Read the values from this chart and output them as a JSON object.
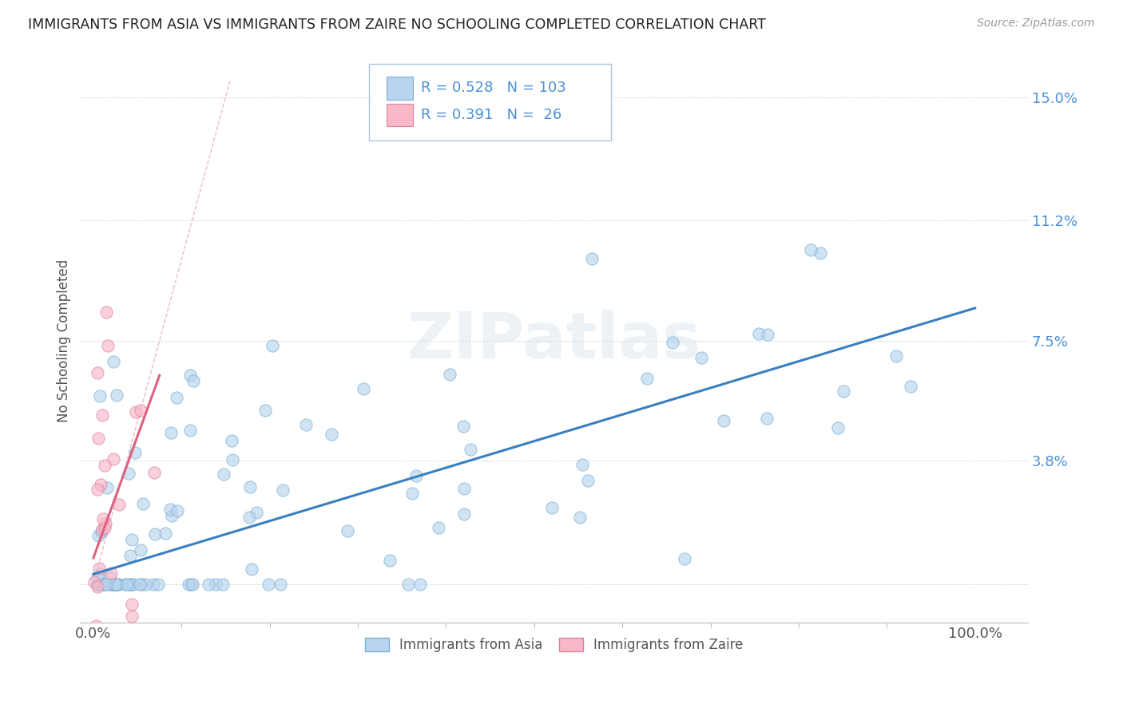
{
  "title": "IMMIGRANTS FROM ASIA VS IMMIGRANTS FROM ZAIRE NO SCHOOLING COMPLETED CORRELATION CHART",
  "source": "Source: ZipAtlas.com",
  "ylabel": "No Schooling Completed",
  "background_color": "#ffffff",
  "plot_bg_color": "#ffffff",
  "asia_color": "#b8d4ee",
  "asia_edge_color": "#7bafd4",
  "zaire_color": "#f8b8c8",
  "zaire_edge_color": "#e080a0",
  "asia_line_color": "#3a7fc1",
  "zaire_line_color": "#e06080",
  "diag_line_color": "#e0a0b0",
  "legend_r_asia": "0.528",
  "legend_n_asia": "103",
  "legend_r_zaire": "0.391",
  "legend_n_zaire": "26",
  "y_ticks": [
    0.0,
    0.038,
    0.075,
    0.112,
    0.15
  ],
  "y_tick_labels": [
    "",
    "3.8%",
    "7.5%",
    "11.2%",
    "15.0%"
  ],
  "x_ticks": [
    0.0,
    1.0
  ],
  "x_tick_labels": [
    "0.0%",
    "100.0%"
  ],
  "xlim": [
    -0.015,
    1.06
  ],
  "ylim": [
    -0.012,
    0.162
  ],
  "asia_slope": 0.082,
  "asia_intercept": 0.003,
  "zaire_slope": 0.75,
  "zaire_intercept": 0.008
}
